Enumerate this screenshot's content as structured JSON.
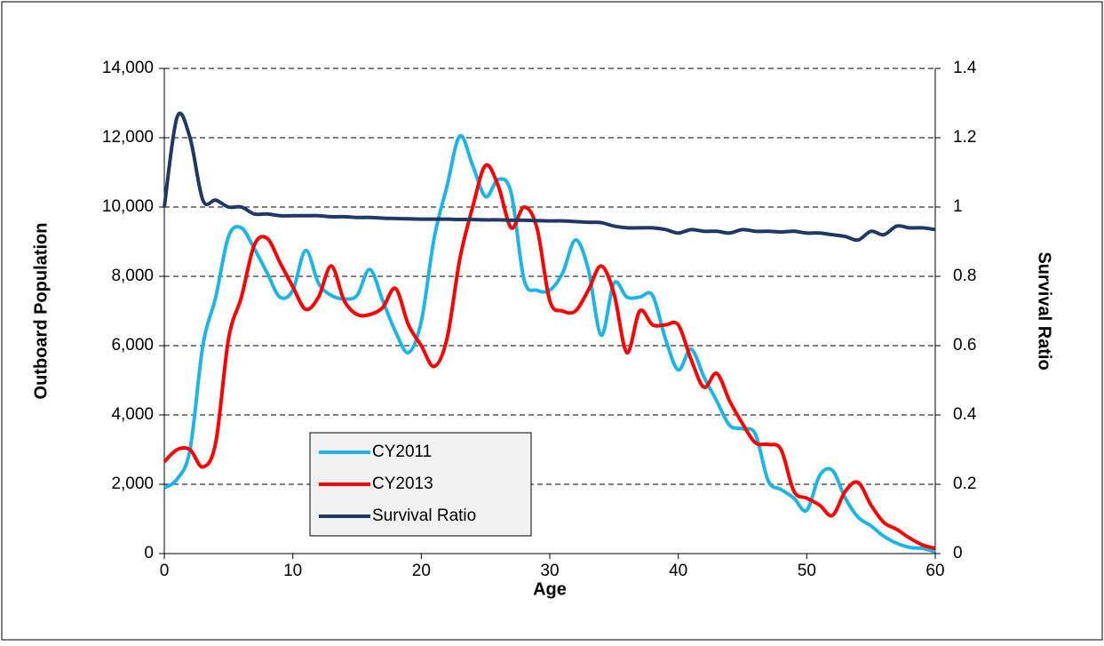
{
  "chart_data": {
    "type": "line",
    "xlabel": "Age",
    "ylabel": "Outboard Population",
    "y2label": "Survival Ratio",
    "x": [
      0,
      1,
      2,
      3,
      4,
      5,
      6,
      7,
      8,
      9,
      10,
      11,
      12,
      13,
      14,
      15,
      16,
      17,
      18,
      19,
      20,
      21,
      22,
      23,
      24,
      25,
      26,
      27,
      28,
      29,
      30,
      31,
      32,
      33,
      34,
      35,
      36,
      37,
      38,
      39,
      40,
      41,
      42,
      43,
      44,
      45,
      46,
      47,
      48,
      49,
      50,
      51,
      52,
      53,
      54,
      55,
      56,
      57,
      58,
      59,
      60
    ],
    "xlim": [
      0,
      60
    ],
    "xticks": [
      0,
      10,
      20,
      30,
      40,
      50,
      60
    ],
    "ylim": [
      0,
      14000
    ],
    "yticks": [
      0,
      {
        "value": 2000,
        "label": "2,000"
      },
      {
        "value": 4000,
        "label": "4,000"
      },
      {
        "value": 6000,
        "label": "6,000"
      },
      {
        "value": 8000,
        "label": "8,000"
      },
      {
        "value": 10000,
        "label": "10,000"
      },
      {
        "value": 12000,
        "label": "12,000"
      },
      {
        "value": 14000,
        "label": "14,000"
      }
    ],
    "y2lim": [
      0,
      1.4
    ],
    "y2ticks": [
      0,
      0.2,
      0.4,
      0.6,
      0.8,
      1,
      1.2,
      1.4
    ],
    "grid": true,
    "legend": "lower-left",
    "series": [
      {
        "name": "CY2011",
        "color": "#1fb4e6",
        "values": [
          1900,
          2150,
          3000,
          6000,
          7400,
          9150,
          9400,
          8800,
          8100,
          7400,
          7600,
          8750,
          7800,
          7450,
          7350,
          7450,
          8200,
          7300,
          6400,
          5800,
          6700,
          9100,
          10600,
          12050,
          11200,
          10300,
          10800,
          10400,
          7900,
          7600,
          7600,
          8100,
          9050,
          8200,
          6300,
          7800,
          7400,
          7400,
          7450,
          6200,
          5300,
          5900,
          5100,
          4400,
          3700,
          3600,
          3450,
          2100,
          1850,
          1600,
          1250,
          2250,
          2400,
          1600,
          1050,
          800,
          500,
          300,
          180,
          150,
          50
        ]
      },
      {
        "name": "CY2013",
        "color": "#ff0000",
        "values": [
          2650,
          3000,
          3000,
          2500,
          3200,
          6200,
          7400,
          8900,
          9100,
          8400,
          7700,
          7050,
          7400,
          8300,
          7300,
          6900,
          6900,
          7100,
          7650,
          6600,
          6000,
          5400,
          6200,
          8500,
          10000,
          11200,
          10600,
          9400,
          10000,
          9400,
          7300,
          7000,
          7000,
          7600,
          8300,
          7500,
          5800,
          7000,
          6600,
          6600,
          6600,
          5600,
          4800,
          5200,
          4400,
          3750,
          3200,
          3150,
          3000,
          1800,
          1600,
          1400,
          1100,
          1800,
          2050,
          1400,
          900,
          700,
          450,
          250,
          150
        ]
      },
      {
        "name": "Survival Ratio",
        "color": "#1f3864",
        "axis": "y2",
        "values": [
          1.0,
          1.26,
          1.2,
          1.02,
          1.02,
          1.0,
          1.0,
          0.98,
          0.98,
          0.975,
          0.975,
          0.975,
          0.975,
          0.972,
          0.972,
          0.97,
          0.97,
          0.968,
          0.967,
          0.966,
          0.965,
          0.965,
          0.965,
          0.964,
          0.964,
          0.963,
          0.963,
          0.962,
          0.962,
          0.961,
          0.96,
          0.96,
          0.958,
          0.956,
          0.955,
          0.945,
          0.94,
          0.94,
          0.94,
          0.935,
          0.925,
          0.935,
          0.93,
          0.93,
          0.925,
          0.935,
          0.93,
          0.93,
          0.928,
          0.93,
          0.925,
          0.925,
          0.92,
          0.915,
          0.905,
          0.93,
          0.92,
          0.945,
          0.94,
          0.94,
          0.935
        ]
      }
    ]
  }
}
